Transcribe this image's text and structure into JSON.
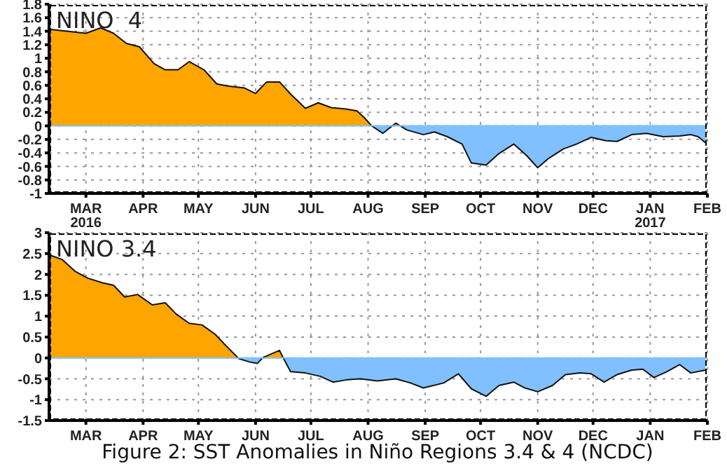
{
  "chart_data": [
    {
      "type": "area",
      "title": "NINO  4",
      "x": [
        "2016-02-10",
        "2016-03-01",
        "2016-03-09",
        "2016-03-16",
        "2016-03-23",
        "2016-03-30",
        "2016-04-07",
        "2016-04-13",
        "2016-04-20",
        "2016-04-26",
        "2016-05-04",
        "2016-05-11",
        "2016-05-17",
        "2016-05-26",
        "2016-06-01",
        "2016-06-07",
        "2016-06-14",
        "2016-06-20",
        "2016-06-28",
        "2016-07-05",
        "2016-07-12",
        "2016-07-20",
        "2016-07-26",
        "2016-07-30",
        "2016-08-03",
        "2016-08-09",
        "2016-08-16",
        "2016-08-22",
        "2016-08-31",
        "2016-09-06",
        "2016-09-13",
        "2016-09-21",
        "2016-09-26",
        "2016-10-04",
        "2016-10-11",
        "2016-10-19",
        "2016-10-26",
        "2016-11-01",
        "2016-11-07",
        "2016-11-15",
        "2016-11-22",
        "2016-11-30",
        "2016-12-08",
        "2016-12-14",
        "2016-12-22",
        "2016-12-30",
        "2017-01-08",
        "2017-01-17",
        "2017-01-23",
        "2017-01-27",
        "2017-01-31"
      ],
      "ref_lines": [
        {
          "axis": "y",
          "value": 0,
          "color": "#80c0ff"
        }
      ],
      "series": [
        {
          "color": "#ffa500",
          "values": [
            1.43,
            1.37,
            1.45,
            1.37,
            1.22,
            1.17,
            0.92,
            0.83,
            0.83,
            0.95,
            0.83,
            0.62,
            0.59,
            0.56,
            0.48,
            0.65,
            0.65,
            0.47,
            0.26,
            0.34,
            0.27,
            0.25,
            0.22,
            0.12,
            0.0,
            -0.11,
            0.04,
            -0.06,
            -0.13,
            -0.09,
            -0.16,
            -0.27,
            -0.55,
            -0.58,
            -0.41,
            -0.27,
            -0.44,
            -0.62,
            -0.48,
            -0.34,
            -0.27,
            -0.17,
            -0.22,
            -0.23,
            -0.13,
            -0.11,
            -0.16,
            -0.15,
            -0.13,
            -0.16,
            -0.25
          ]
        }
      ],
      "xlim": [
        "2016-02-10",
        "2017-02-01"
      ],
      "xticks": [
        {
          "value": "2016-03-01",
          "label": "MAR\n2016"
        },
        {
          "value": "2016-04-01",
          "label": "APR"
        },
        {
          "value": "2016-05-01",
          "label": "MAY"
        },
        {
          "value": "2016-06-01",
          "label": "JUN"
        },
        {
          "value": "2016-07-01",
          "label": "JUL"
        },
        {
          "value": "2016-08-01",
          "label": "AUG"
        },
        {
          "value": "2016-09-01",
          "label": "SEP"
        },
        {
          "value": "2016-10-01",
          "label": "OCT"
        },
        {
          "value": "2016-11-01",
          "label": "NOV"
        },
        {
          "value": "2016-12-01",
          "label": "DEC"
        },
        {
          "value": "2017-01-01",
          "label": "JAN\n2017"
        },
        {
          "value": "2017-02-01",
          "label": "FEB"
        }
      ],
      "ylim": [
        -1,
        1.8
      ],
      "yticks": [
        -1,
        -0.8,
        -0.6,
        -0.4,
        -0.2,
        0,
        0.2,
        0.4,
        0.6,
        0.8,
        1,
        1.2,
        1.4,
        1.6,
        1.8
      ],
      "grid": true
    },
    {
      "type": "area",
      "title": "NINO 3.4",
      "annotations": [
        "Figure 2: SST Anomalies in Niño Regions 3.4 & 4 (NCDC)"
      ],
      "x": [
        "2016-02-10",
        "2016-02-17",
        "2016-02-24",
        "2016-03-02",
        "2016-03-10",
        "2016-03-16",
        "2016-03-22",
        "2016-03-29",
        "2016-04-06",
        "2016-04-13",
        "2016-04-19",
        "2016-04-26",
        "2016-05-03",
        "2016-05-10",
        "2016-05-16",
        "2016-05-23",
        "2016-05-29",
        "2016-06-02",
        "2016-06-05",
        "2016-06-14",
        "2016-06-16",
        "2016-06-20",
        "2016-06-28",
        "2016-07-06",
        "2016-07-13",
        "2016-07-21",
        "2016-07-28",
        "2016-08-06",
        "2016-08-16",
        "2016-08-24",
        "2016-08-31",
        "2016-09-11",
        "2016-09-19",
        "2016-09-26",
        "2016-10-04",
        "2016-10-11",
        "2016-10-19",
        "2016-10-25",
        "2016-11-01",
        "2016-11-09",
        "2016-11-16",
        "2016-11-24",
        "2016-11-30",
        "2016-12-07",
        "2016-12-14",
        "2016-12-22",
        "2016-12-28",
        "2017-01-03",
        "2017-01-10",
        "2017-01-17",
        "2017-01-23",
        "2017-01-31"
      ],
      "ref_lines": [
        {
          "axis": "y",
          "value": 0,
          "color": "#80c0ff"
        }
      ],
      "series": [
        {
          "color": "#ffa500",
          "values": [
            2.47,
            2.36,
            2.08,
            1.91,
            1.8,
            1.74,
            1.46,
            1.52,
            1.27,
            1.32,
            1.05,
            0.83,
            0.79,
            0.57,
            0.29,
            -0.02,
            -0.1,
            -0.13,
            0.01,
            0.18,
            0.0,
            -0.33,
            -0.36,
            -0.44,
            -0.58,
            -0.52,
            -0.5,
            -0.55,
            -0.5,
            -0.6,
            -0.72,
            -0.6,
            -0.38,
            -0.74,
            -0.92,
            -0.66,
            -0.58,
            -0.72,
            -0.81,
            -0.66,
            -0.4,
            -0.36,
            -0.38,
            -0.58,
            -0.4,
            -0.29,
            -0.27,
            -0.47,
            -0.33,
            -0.16,
            -0.36,
            -0.29
          ]
        }
      ],
      "xlim": [
        "2016-02-10",
        "2017-02-01"
      ],
      "xticks": [
        {
          "value": "2016-03-01",
          "label": "MAR"
        },
        {
          "value": "2016-04-01",
          "label": "APR"
        },
        {
          "value": "2016-05-01",
          "label": "MAY"
        },
        {
          "value": "2016-06-01",
          "label": "JUN"
        },
        {
          "value": "2016-07-01",
          "label": "JUL"
        },
        {
          "value": "2016-08-01",
          "label": "AUG"
        },
        {
          "value": "2016-09-01",
          "label": "SEP"
        },
        {
          "value": "2016-10-01",
          "label": "OCT"
        },
        {
          "value": "2016-11-01",
          "label": "NOV"
        },
        {
          "value": "2016-12-01",
          "label": "DEC"
        },
        {
          "value": "2017-01-01",
          "label": "JAN"
        },
        {
          "value": "2017-02-01",
          "label": "FEB"
        }
      ],
      "ylim": [
        -1.5,
        3
      ],
      "yticks": [
        -1.5,
        -1,
        -0.5,
        0,
        0.5,
        1,
        1.5,
        2,
        2.5,
        3
      ],
      "grid": true
    }
  ]
}
